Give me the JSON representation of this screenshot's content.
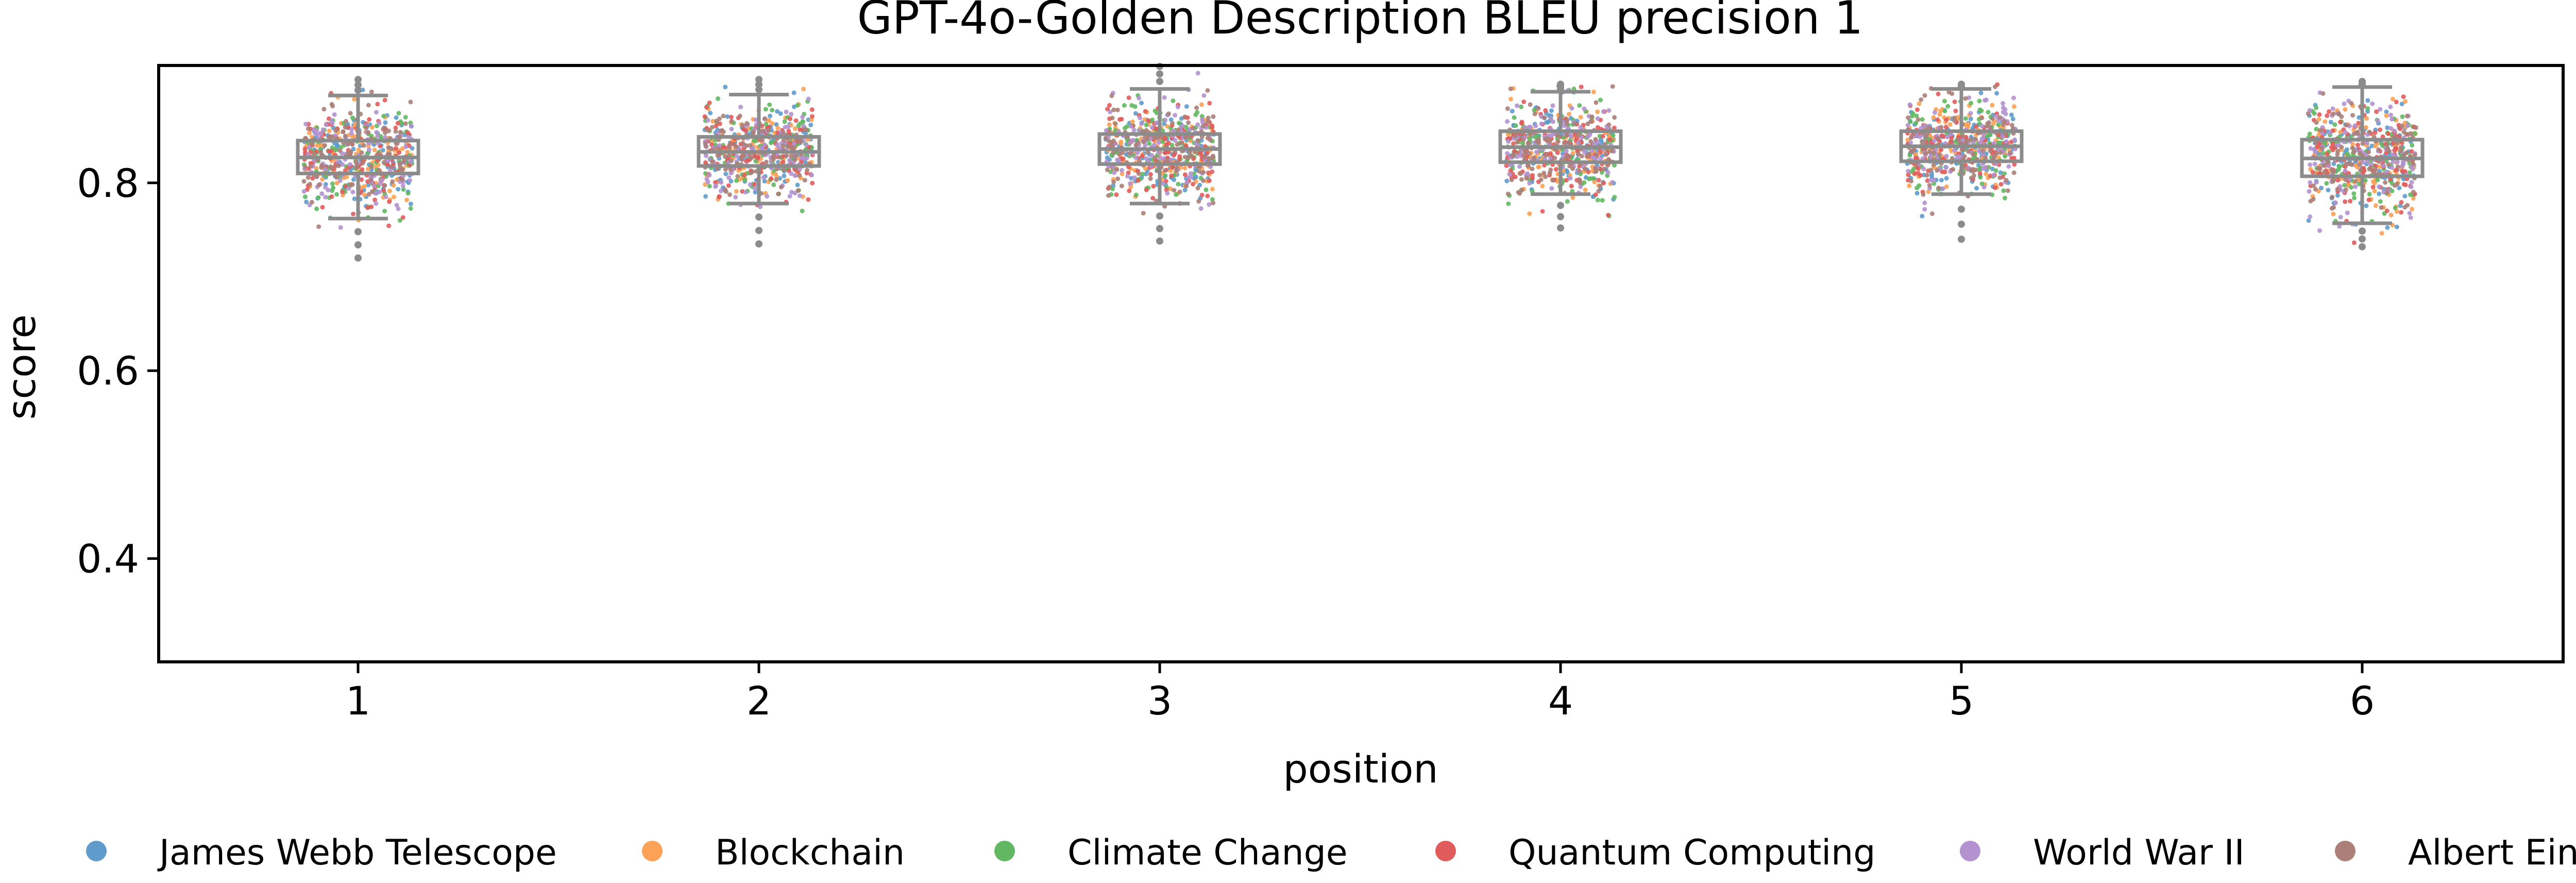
{
  "chart_data": {
    "type": "box-strip",
    "title": "GPT-4o-Golden Description BLEU precision 1",
    "xlabel": "position",
    "ylabel": "score",
    "x_ticks": [
      "1",
      "2",
      "3",
      "4",
      "5",
      "6"
    ],
    "y_ticks": [
      0.4,
      0.6,
      0.8
    ],
    "ylim": [
      0.29,
      0.925
    ],
    "grid": false,
    "legend_placement": "bottom",
    "series": [
      {
        "name": "James Webb Telescope",
        "color": "#5f9ccc"
      },
      {
        "name": "Blockchain",
        "color": "#fca256"
      },
      {
        "name": "Climate Change",
        "color": "#62b862"
      },
      {
        "name": "Quantum Computing",
        "color": "#e05c5c"
      },
      {
        "name": "World War II",
        "color": "#b392cf"
      },
      {
        "name": "Albert Einstein",
        "color": "#ac7f79"
      }
    ],
    "boxes": [
      {
        "position": "1",
        "whisker_low": 0.762,
        "q1": 0.81,
        "median": 0.827,
        "q3": 0.845,
        "whisker_high": 0.893,
        "min": 0.72,
        "max": 0.91
      },
      {
        "position": "2",
        "whisker_low": 0.778,
        "q1": 0.818,
        "median": 0.833,
        "q3": 0.849,
        "whisker_high": 0.894,
        "min": 0.735,
        "max": 0.91
      },
      {
        "position": "3",
        "whisker_low": 0.778,
        "q1": 0.82,
        "median": 0.836,
        "q3": 0.852,
        "whisker_high": 0.9,
        "min": 0.738,
        "max": 0.924
      },
      {
        "position": "4",
        "whisker_low": 0.788,
        "q1": 0.822,
        "median": 0.838,
        "q3": 0.855,
        "whisker_high": 0.897,
        "min": 0.752,
        "max": 0.905
      },
      {
        "position": "5",
        "whisker_low": 0.788,
        "q1": 0.823,
        "median": 0.839,
        "q3": 0.855,
        "whisker_high": 0.9,
        "min": 0.74,
        "max": 0.905
      },
      {
        "position": "6",
        "whisker_low": 0.757,
        "q1": 0.807,
        "median": 0.826,
        "q3": 0.846,
        "whisker_high": 0.902,
        "min": 0.732,
        "max": 0.908
      }
    ],
    "box_color": "#8c8c8c",
    "points_per_series_per_position": 110
  }
}
